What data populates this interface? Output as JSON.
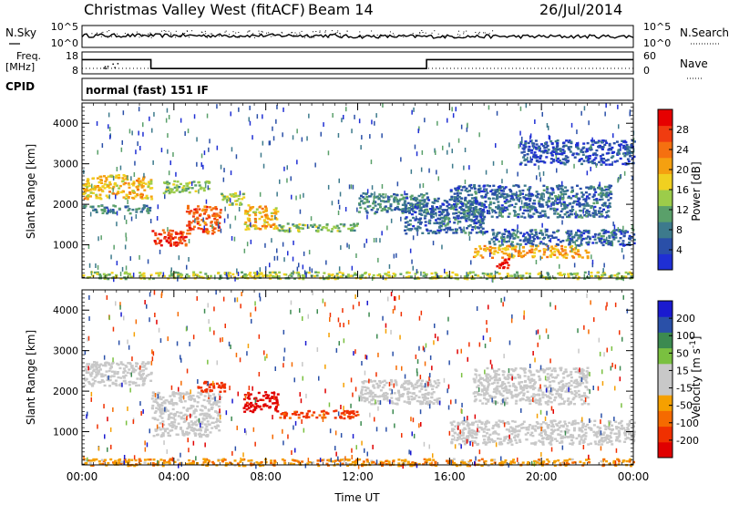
{
  "header": {
    "station": "Christmas Valley West (fitACF)",
    "beam": "Beam 14",
    "date": "26/Jul/2014"
  },
  "panels": {
    "noise": {
      "left_label": "N.Sky",
      "right_label": "N.Search",
      "ticks_left": [
        "10^5",
        "10^0"
      ],
      "ticks_right": [
        "10^5",
        "10^0"
      ]
    },
    "freq": {
      "left_label_1": "Freq.",
      "left_label_2": "[MHz]",
      "ticks_left": [
        "18",
        "8"
      ],
      "right_label": "Nave",
      "ticks_right": [
        "60",
        "0"
      ],
      "freq_steps": [
        {
          "start_h": 0.0,
          "end_h": 3.0,
          "freq_mhz": 14.5
        },
        {
          "start_h": 3.0,
          "end_h": 15.0,
          "freq_mhz": 10.4
        },
        {
          "start_h": 15.0,
          "end_h": 24.0,
          "freq_mhz": 14.5
        }
      ]
    },
    "cpid": {
      "label": "CPID",
      "text": "normal (fast) 151 IF"
    }
  },
  "colors": {
    "power": [
      "#1f2fd4",
      "#2a4fa8",
      "#3d7a8c",
      "#5aa06a",
      "#9ccc4a",
      "#f0d020",
      "#f5a010",
      "#f57010",
      "#f03c10",
      "#e60000"
    ],
    "velocity": [
      "#e00000",
      "#f03000",
      "#f56a00",
      "#f5a000",
      "#c8c8c8",
      "#c8c8c8",
      "#7ac040",
      "#3c8a50",
      "#2a50a8",
      "#1a1ad0"
    ],
    "ground_scatter": "#c8c8c8"
  },
  "chart_data": [
    {
      "type": "heatmap",
      "name": "power",
      "xlabel": "",
      "ylabel": "Slant Range [km]",
      "xlim": [
        0,
        24
      ],
      "ylim": [
        180,
        4500
      ],
      "yticks": [
        "1000",
        "2000",
        "3000",
        "4000"
      ],
      "colorbar_label": "Power [dB]",
      "colorbar_ticks": [
        "4",
        "8",
        "12",
        "16",
        "20",
        "24",
        "28"
      ],
      "colorbar_range": [
        0,
        30
      ],
      "regions": [
        {
          "t0": 0.0,
          "t1": 3.0,
          "r0": 2150,
          "r1": 2750,
          "value": 18
        },
        {
          "t0": 0.0,
          "t1": 3.0,
          "r0": 1800,
          "r1": 2000,
          "value": 8
        },
        {
          "t0": 3.0,
          "t1": 4.5,
          "r0": 1000,
          "r1": 1400,
          "value": 26
        },
        {
          "t0": 4.5,
          "t1": 6.0,
          "r0": 1300,
          "r1": 2000,
          "value": 24
        },
        {
          "t0": 6.0,
          "t1": 7.0,
          "r0": 2000,
          "r1": 2300,
          "value": 14
        },
        {
          "t0": 3.5,
          "t1": 5.5,
          "r0": 2300,
          "r1": 2600,
          "value": 12
        },
        {
          "t0": 7.0,
          "t1": 8.5,
          "r0": 1400,
          "r1": 2000,
          "value": 18
        },
        {
          "t0": 8.5,
          "t1": 12.0,
          "r0": 1350,
          "r1": 1550,
          "value": 12
        },
        {
          "t0": 12.0,
          "t1": 15.0,
          "r0": 1800,
          "r1": 2300,
          "value": 8
        },
        {
          "t0": 14.0,
          "t1": 17.5,
          "r0": 1300,
          "r1": 2200,
          "value": 6
        },
        {
          "t0": 17.0,
          "t1": 22.0,
          "r0": 700,
          "r1": 1000,
          "value": 20
        },
        {
          "t0": 18.0,
          "t1": 18.6,
          "r0": 450,
          "r1": 700,
          "value": 28
        },
        {
          "t0": 17.5,
          "t1": 24.0,
          "r0": 1000,
          "r1": 1400,
          "value": 6
        },
        {
          "t0": 16.0,
          "t1": 23.0,
          "r0": 1700,
          "r1": 2500,
          "value": 6
        },
        {
          "t0": 19.0,
          "t1": 24.0,
          "r0": 3000,
          "r1": 3600,
          "value": 4
        },
        {
          "t0": 0.0,
          "t1": 24.0,
          "r0": 180,
          "r1": 350,
          "value": 14
        }
      ]
    },
    {
      "type": "heatmap",
      "name": "velocity",
      "xlabel": "Time UT",
      "ylabel": "Slant Range [km]",
      "xlim": [
        0,
        24
      ],
      "ylim": [
        180,
        4500
      ],
      "xticks": [
        "00:00",
        "04:00",
        "08:00",
        "12:00",
        "16:00",
        "20:00",
        "00:00"
      ],
      "yticks": [
        "1000",
        "2000",
        "3000",
        "4000"
      ],
      "colorbar_label": "Velocity [m s^-1]",
      "colorbar_ticks": [
        "200",
        "100",
        "50",
        "15",
        "-15",
        "-50",
        "-100",
        "-200"
      ],
      "colorbar_range": [
        -250,
        250
      ],
      "regions": [
        {
          "t0": 0.0,
          "t1": 3.0,
          "r0": 2150,
          "r1": 2750,
          "value": 0,
          "ground": true
        },
        {
          "t0": 3.0,
          "t1": 6.0,
          "r0": 900,
          "r1": 2000,
          "value": 0,
          "ground": true
        },
        {
          "t0": 5.0,
          "t1": 6.2,
          "r0": 2000,
          "r1": 2300,
          "value": -150
        },
        {
          "t0": 7.0,
          "t1": 8.5,
          "r0": 1500,
          "r1": 2000,
          "value": -220
        },
        {
          "t0": 8.5,
          "t1": 12.0,
          "r0": 1350,
          "r1": 1550,
          "value": -120
        },
        {
          "t0": 12.0,
          "t1": 15.5,
          "r0": 1700,
          "r1": 2300,
          "value": 0,
          "ground": true
        },
        {
          "t0": 16.0,
          "t1": 24.0,
          "r0": 700,
          "r1": 1300,
          "value": 0,
          "ground": true
        },
        {
          "t0": 17.0,
          "t1": 22.0,
          "r0": 1700,
          "r1": 2600,
          "value": 0,
          "ground": true
        },
        {
          "t0": 0.0,
          "t1": 24.0,
          "r0": 180,
          "r1": 350,
          "value": -40
        }
      ]
    }
  ]
}
